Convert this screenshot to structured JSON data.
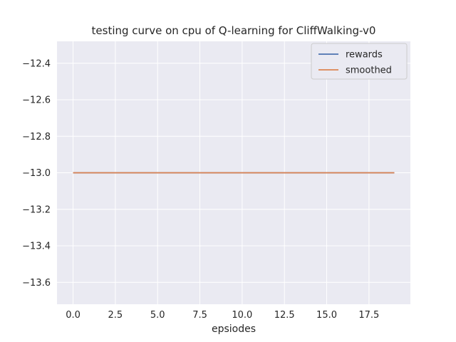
{
  "figure": {
    "background": "#ffffff"
  },
  "chart_data": {
    "type": "line",
    "title": "testing curve on cpu of Q-learning for CliffWalking-v0",
    "xlabel": "epsiodes",
    "ylabel": "",
    "xlim": [
      -0.95,
      19.95
    ],
    "ylim": [
      -13.72,
      -12.28
    ],
    "x_ticks": [
      0.0,
      2.5,
      5.0,
      7.5,
      10.0,
      12.5,
      15.0,
      17.5
    ],
    "y_ticks": [
      -12.4,
      -12.6,
      -12.8,
      -13.0,
      -13.2,
      -13.4,
      -13.6
    ],
    "grid": true,
    "plot_background": "#eaeaf2",
    "grid_color": "#ffffff",
    "text_color": "#262626",
    "legend": {
      "position": "upper right",
      "labels": [
        "rewards",
        "smoothed"
      ]
    },
    "series": [
      {
        "name": "rewards",
        "color": "#4c72b0",
        "x": [
          0,
          19
        ],
        "y": [
          -13.0,
          -13.0
        ]
      },
      {
        "name": "smoothed",
        "color": "#dd8452",
        "x": [
          0,
          19
        ],
        "y": [
          -13.0,
          -13.0
        ]
      }
    ]
  }
}
